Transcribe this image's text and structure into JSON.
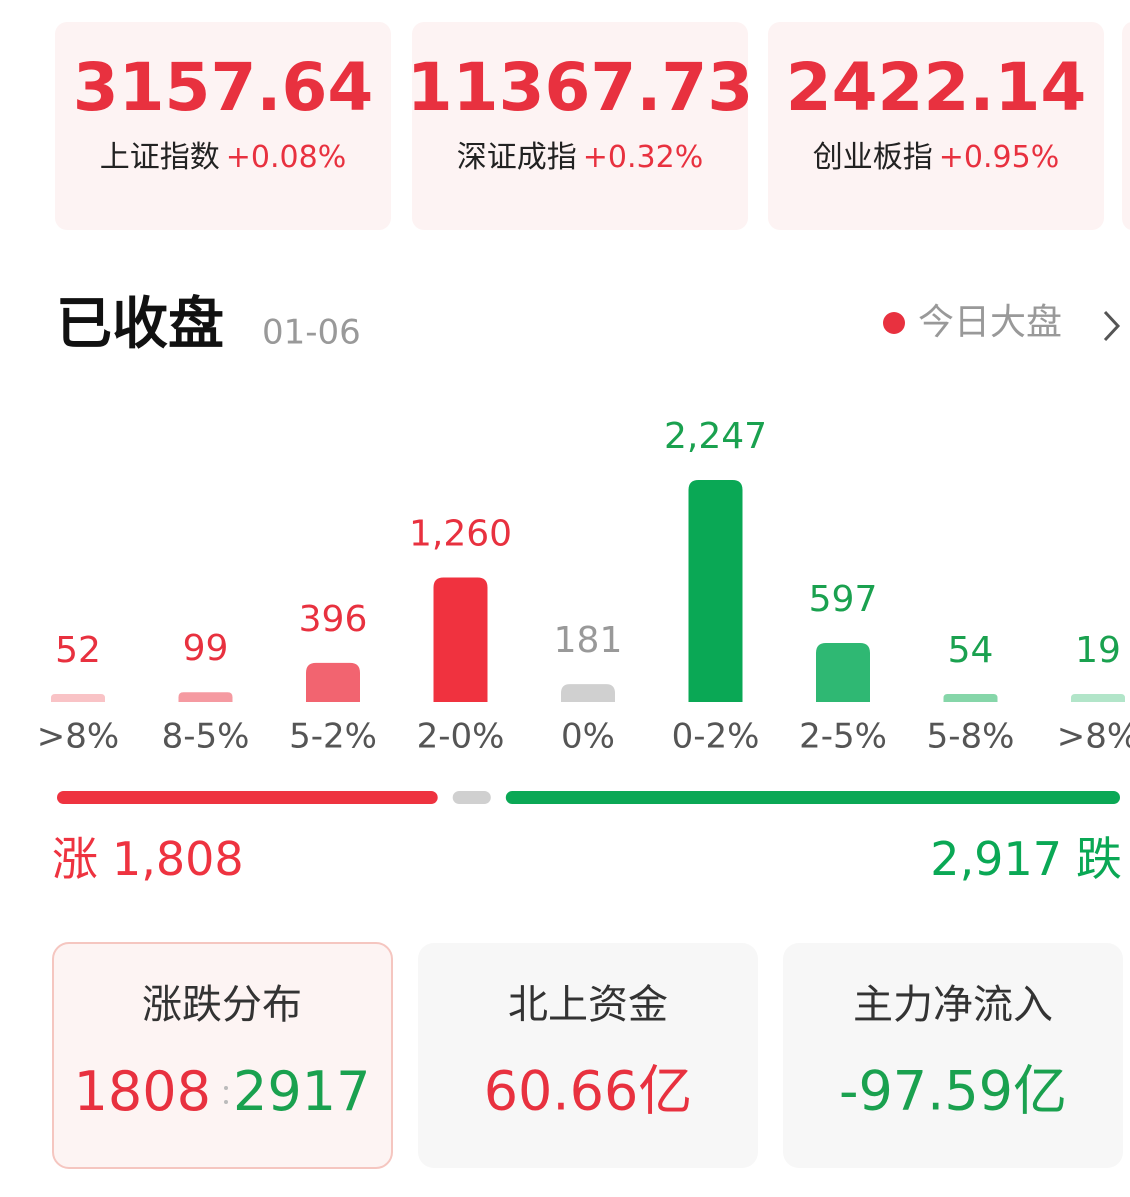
{
  "indices": [
    {
      "value": "3157.64",
      "name": "上证指数",
      "change": "+0.08%"
    },
    {
      "value": "11367.73",
      "name": "深证成指",
      "change": "+0.32%"
    },
    {
      "value": "2422.14",
      "name": "创业板指",
      "change": "+0.95%"
    }
  ],
  "header": {
    "title": "已收盘",
    "date": "01-06",
    "link": "今日大盘"
  },
  "chart_data": {
    "type": "bar",
    "categories": [
      ">8%",
      "8-5%",
      "5-2%",
      "2-0%",
      "0%",
      "0-2%",
      "2-5%",
      "5-8%",
      ">8%"
    ],
    "values": [
      52,
      99,
      396,
      1260,
      181,
      2247,
      597,
      54,
      19
    ],
    "value_labels": [
      "52",
      "99",
      "396",
      "1,260",
      "181",
      "2,247",
      "597",
      "54",
      "19"
    ],
    "colors": [
      "#f9c3c6",
      "#f59aa1",
      "#f26470",
      "#f0323f",
      "#d0d0d0",
      "#0aa855",
      "#2fb873",
      "#86d6a9",
      "#b2e5c9"
    ],
    "value_label_colors": [
      "#e8313f",
      "#e8313f",
      "#e8313f",
      "#e8313f",
      "#999999",
      "#1aa14f",
      "#1aa14f",
      "#1aa14f",
      "#1aa14f"
    ]
  },
  "summary": {
    "rise": {
      "label": "涨",
      "value": 1808,
      "value_label": "1,808",
      "color": "#ee3340"
    },
    "flat_color": "#d0d0d0",
    "fall": {
      "label": "跌",
      "value": 2917,
      "value_label": "2,917",
      "color": "#0aa855"
    }
  },
  "cards": [
    {
      "title": "涨跌分布",
      "values": [
        "1808",
        "2917"
      ]
    },
    {
      "title": "北上资金",
      "value": "60.66亿"
    },
    {
      "title": "主力净流入",
      "value": "-97.59亿"
    }
  ]
}
